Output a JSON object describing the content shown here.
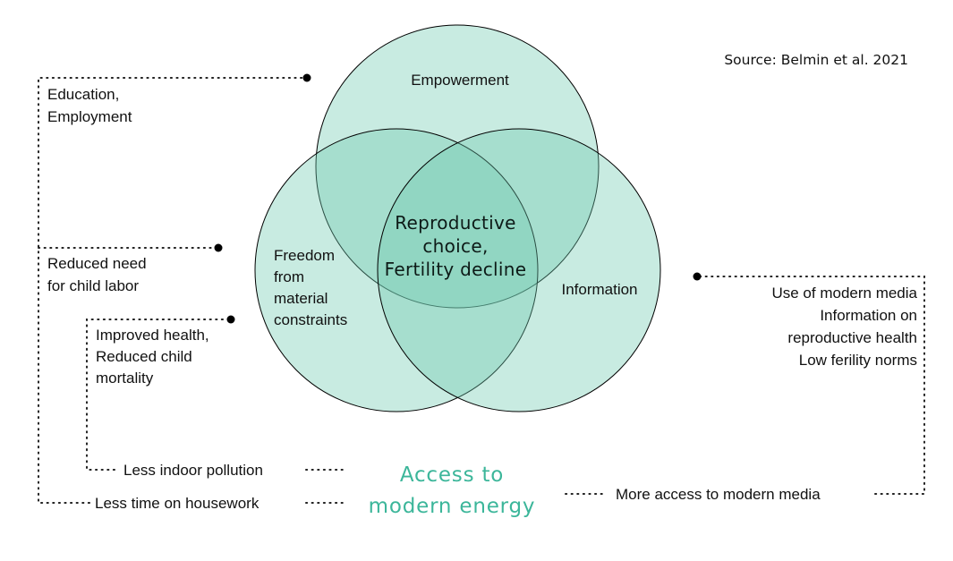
{
  "source": "Source: Belmin et al. 2021",
  "center_lines": [
    "Reproductive",
    "choice,",
    "Fertility decline"
  ],
  "circles": {
    "top": {
      "label": "Empowerment"
    },
    "left": {
      "label_lines": [
        "Freedom",
        "from",
        "material",
        "constraints"
      ]
    },
    "right": {
      "label": "Information"
    }
  },
  "left_factors": {
    "empowerment": [
      "Education,",
      "Employment"
    ],
    "child_labor": [
      "Reduced need",
      "for child labor"
    ],
    "health": [
      "Improved health,",
      "Reduced child",
      "mortality"
    ]
  },
  "right_factors": [
    "Use of modern media",
    "Information on",
    "reproductive health",
    "Low ferility norms"
  ],
  "pathways": {
    "pollution": "Less indoor pollution",
    "housework": "Less time on housework",
    "media": "More access to modern media"
  },
  "access_lines": [
    "Access to",
    "modern energy"
  ],
  "colors": {
    "circle_fill": "#6fcbb0",
    "circle_stroke": "#000000",
    "access_text": "#3cb69a"
  }
}
